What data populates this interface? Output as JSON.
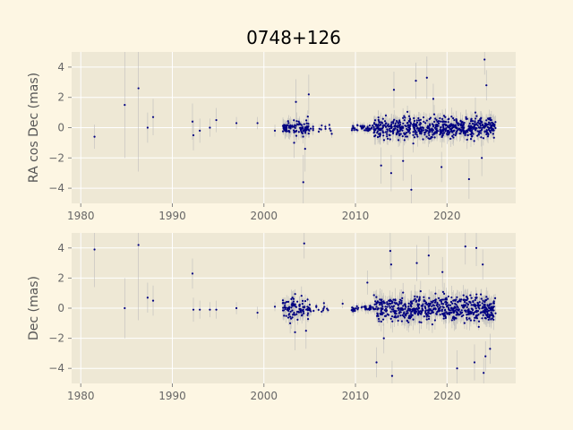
{
  "chart_data": {
    "title": "0748+126",
    "colors": {
      "background": "#fdf6e3",
      "plot_area": "#eee8d5",
      "grid": "#ffffff",
      "points": "#000080",
      "error_bars": "#bbbbbb"
    },
    "panels": [
      {
        "type": "scatter",
        "ylabel": "RA cos Dec (mas)",
        "xlabel": "",
        "xlim": [
          1979.0,
          2027.5
        ],
        "ylim": [
          -5.0,
          5.0
        ],
        "xticks": [
          1980,
          1990,
          2000,
          2010,
          2020
        ],
        "xtick_labels": [
          "1980",
          "1990",
          "2000",
          "2010",
          "2020"
        ],
        "yticks": [
          -4,
          -2,
          0,
          2,
          4
        ],
        "ytick_labels": [
          "−4",
          "−2",
          "0",
          "2",
          "4"
        ],
        "grid": true,
        "points": [
          {
            "x": 1981.5,
            "y": -0.6,
            "err": 0.8
          },
          {
            "x": 1984.8,
            "y": 1.5,
            "err": 3.5
          },
          {
            "x": 1986.3,
            "y": 2.6,
            "err": 5.5
          },
          {
            "x": 1987.3,
            "y": 0.0,
            "err": 1.0
          },
          {
            "x": 1987.9,
            "y": 0.7,
            "err": 1.2
          },
          {
            "x": 1992.2,
            "y": 0.4,
            "err": 1.2
          },
          {
            "x": 1992.3,
            "y": -0.5,
            "err": 1.0
          },
          {
            "x": 1993.0,
            "y": -0.2,
            "err": 0.8
          },
          {
            "x": 1994.1,
            "y": 0.0,
            "err": 0.6
          },
          {
            "x": 1994.8,
            "y": 0.5,
            "err": 0.8
          },
          {
            "x": 1997.0,
            "y": 0.3,
            "err": 0.4
          },
          {
            "x": 1999.3,
            "y": 0.3,
            "err": 0.4
          },
          {
            "x": 2001.2,
            "y": -0.2,
            "err": 0.4
          },
          {
            "x": 2003.5,
            "y": 1.7,
            "err": 1.5
          },
          {
            "x": 2004.3,
            "y": -3.6,
            "err": 1.8
          },
          {
            "x": 2004.5,
            "y": -1.4,
            "err": 1.5
          },
          {
            "x": 2004.9,
            "y": 2.2,
            "err": 1.3
          },
          {
            "x": 2003.3,
            "y": -1.0,
            "err": 1.0
          },
          {
            "x": 2012.8,
            "y": -2.5,
            "err": 1.2
          },
          {
            "x": 2013.9,
            "y": -3.0,
            "err": 1.2
          },
          {
            "x": 2014.2,
            "y": 2.5,
            "err": 1.2
          },
          {
            "x": 2015.2,
            "y": -2.2,
            "err": 1.3
          },
          {
            "x": 2016.1,
            "y": -4.1,
            "err": 1.0
          },
          {
            "x": 2016.6,
            "y": 3.1,
            "err": 1.2
          },
          {
            "x": 2017.8,
            "y": 3.3,
            "err": 1.4
          },
          {
            "x": 2018.5,
            "y": 1.9,
            "err": 1.0
          },
          {
            "x": 2019.4,
            "y": -2.6,
            "err": 1.0
          },
          {
            "x": 2022.4,
            "y": -3.4,
            "err": 1.3
          },
          {
            "x": 2023.1,
            "y": 1.0,
            "err": 1.0
          },
          {
            "x": 2023.8,
            "y": -2.0,
            "err": 1.2
          },
          {
            "x": 2024.1,
            "y": 4.5,
            "err": 1.0
          },
          {
            "x": 2024.3,
            "y": 2.8,
            "err": 1.0
          }
        ]
      },
      {
        "type": "scatter",
        "ylabel": "Dec (mas)",
        "xlabel": "",
        "xlim": [
          1979.0,
          2027.5
        ],
        "ylim": [
          -5.0,
          5.0
        ],
        "xticks": [
          1980,
          1990,
          2000,
          2010,
          2020
        ],
        "xtick_labels": [
          "1980",
          "1990",
          "2000",
          "2010",
          "2020"
        ],
        "yticks": [
          -4,
          -2,
          0,
          2,
          4
        ],
        "ytick_labels": [
          "−4",
          "−2",
          "0",
          "2",
          "4"
        ],
        "grid": true,
        "points": [
          {
            "x": 1981.5,
            "y": 3.9,
            "err": 2.5
          },
          {
            "x": 1984.8,
            "y": 0.0,
            "err": 2.0
          },
          {
            "x": 1986.3,
            "y": 4.2,
            "err": 5.0
          },
          {
            "x": 1987.3,
            "y": 0.7,
            "err": 1.0
          },
          {
            "x": 1987.9,
            "y": 0.5,
            "err": 1.0
          },
          {
            "x": 1992.2,
            "y": 2.3,
            "err": 1.0
          },
          {
            "x": 1992.3,
            "y": -0.1,
            "err": 0.8
          },
          {
            "x": 1993.0,
            "y": -0.1,
            "err": 0.6
          },
          {
            "x": 1994.1,
            "y": -0.1,
            "err": 0.5
          },
          {
            "x": 1994.8,
            "y": -0.1,
            "err": 0.6
          },
          {
            "x": 1997.0,
            "y": 0.0,
            "err": 0.4
          },
          {
            "x": 1999.3,
            "y": -0.3,
            "err": 0.4
          },
          {
            "x": 2001.2,
            "y": 0.1,
            "err": 0.3
          },
          {
            "x": 2003.4,
            "y": -1.6,
            "err": 1.2
          },
          {
            "x": 2004.4,
            "y": 4.3,
            "err": 1.0
          },
          {
            "x": 2004.6,
            "y": -1.5,
            "err": 1.2
          },
          {
            "x": 2008.6,
            "y": 0.3,
            "err": 0.3
          },
          {
            "x": 2011.3,
            "y": 1.7,
            "err": 0.8
          },
          {
            "x": 2012.3,
            "y": -3.6,
            "err": 1.0
          },
          {
            "x": 2013.1,
            "y": -2.0,
            "err": 1.0
          },
          {
            "x": 2013.8,
            "y": 3.8,
            "err": 1.2
          },
          {
            "x": 2014.0,
            "y": -4.5,
            "err": 1.0
          },
          {
            "x": 2013.9,
            "y": 2.9,
            "err": 1.0
          },
          {
            "x": 2016.7,
            "y": 3.0,
            "err": 1.2
          },
          {
            "x": 2018.0,
            "y": 3.5,
            "err": 1.3
          },
          {
            "x": 2019.5,
            "y": 2.4,
            "err": 1.0
          },
          {
            "x": 2021.1,
            "y": -4.0,
            "err": 1.2
          },
          {
            "x": 2022.0,
            "y": 4.1,
            "err": 1.2
          },
          {
            "x": 2023.2,
            "y": 4.0,
            "err": 1.2
          },
          {
            "x": 2023.0,
            "y": -3.6,
            "err": 1.2
          },
          {
            "x": 2024.0,
            "y": -4.3,
            "err": 1.0
          },
          {
            "x": 2024.2,
            "y": -3.2,
            "err": 1.0
          },
          {
            "x": 2024.7,
            "y": -2.7,
            "err": 1.0
          },
          {
            "x": 2023.9,
            "y": 2.9,
            "err": 1.0
          }
        ]
      }
    ]
  }
}
